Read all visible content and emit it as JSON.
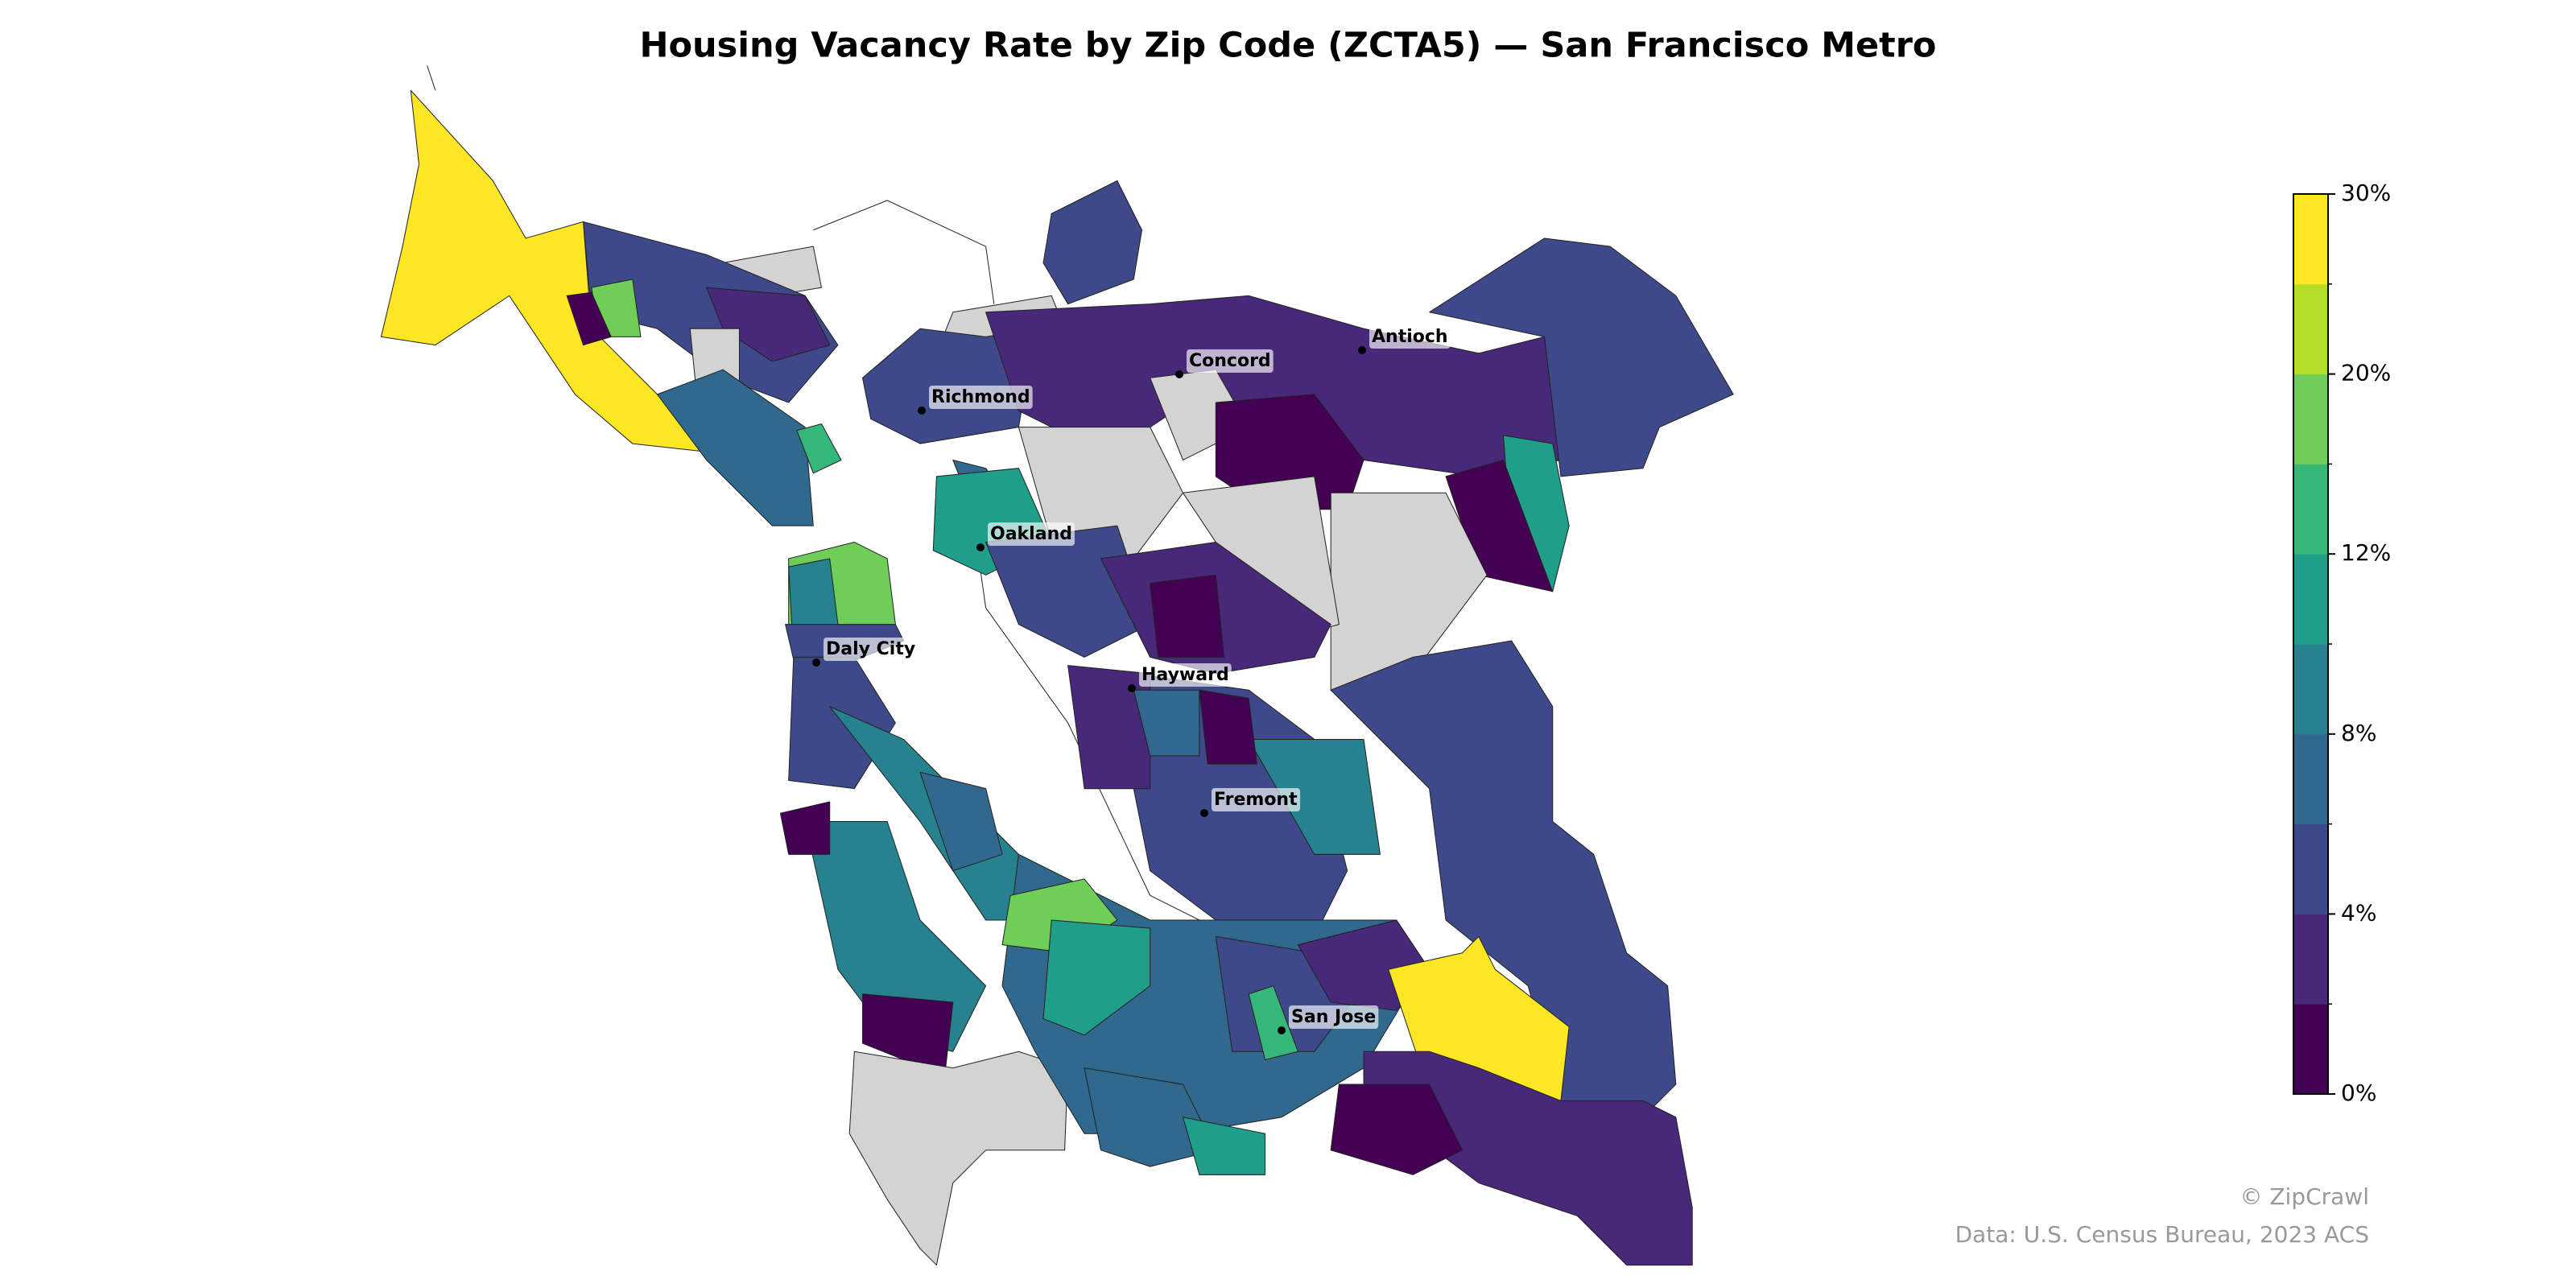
{
  "title": "Housing Vacancy Rate by Zip Code (ZCTA5) — San Francisco Metro",
  "colorbar": {
    "boundaries": [
      0,
      2,
      4,
      6,
      8,
      10,
      12,
      16,
      20,
      25,
      30
    ],
    "colors": [
      "#440154",
      "#482878",
      "#3e4989",
      "#31688e",
      "#26828e",
      "#1f9e89",
      "#35b779",
      "#6ece58",
      "#b5de2b",
      "#fde725"
    ],
    "ticks": [
      {
        "value": 0,
        "label": "0%"
      },
      {
        "value": 4,
        "label": "4%"
      },
      {
        "value": 8,
        "label": "8%"
      },
      {
        "value": 12,
        "label": "12%"
      },
      {
        "value": 20,
        "label": "20%"
      },
      {
        "value": 30,
        "label": "30%"
      }
    ]
  },
  "cities": [
    {
      "name": "Richmond"
    },
    {
      "name": "Concord"
    },
    {
      "name": "Antioch"
    },
    {
      "name": "Oakland"
    },
    {
      "name": "Daly City"
    },
    {
      "name": "Hayward"
    },
    {
      "name": "Fremont"
    },
    {
      "name": "San Jose"
    }
  ],
  "credits": [
    "© ZipCrawl",
    "Data: U.S. Census Bureau, 2023 ACS"
  ]
}
